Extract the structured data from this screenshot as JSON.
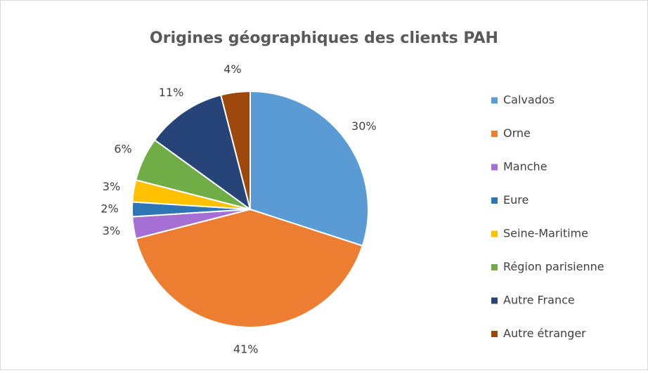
{
  "chart_data": {
    "type": "pie",
    "title": "Origines géographiques des clients PAH",
    "categories": [
      "Calvados",
      "Orne",
      "Manche",
      "Eure",
      "Seine-Maritime",
      "Région parisienne",
      "Autre France",
      "Autre étranger"
    ],
    "values": [
      30,
      41,
      3,
      2,
      3,
      6,
      11,
      4
    ],
    "value_labels": [
      "30%",
      "41%",
      "3%",
      "2%",
      "3%",
      "6%",
      "11%",
      "4%"
    ],
    "colors": [
      "#5b9bd5",
      "#ed7d31",
      "#a66fd4",
      "#2e75b6",
      "#ffc000",
      "#70ad47",
      "#264478",
      "#9e480e"
    ],
    "legend": "right"
  }
}
